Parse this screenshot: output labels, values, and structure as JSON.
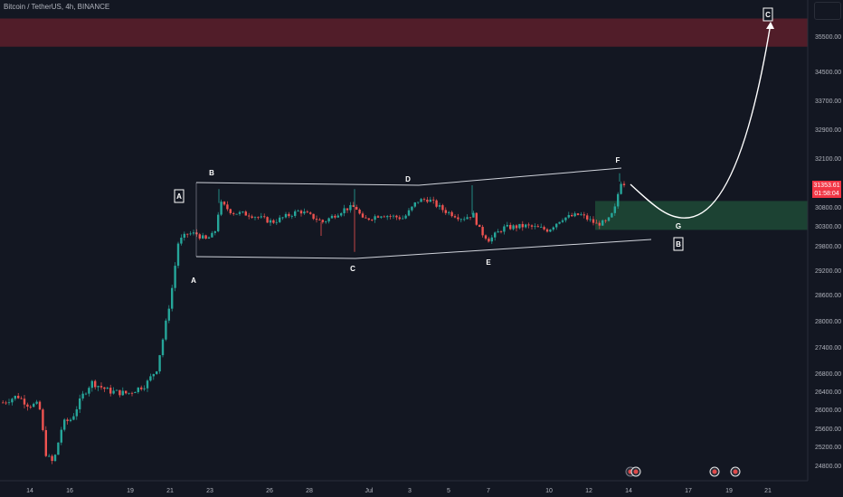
{
  "symbol_line": "Bitcoin / TetherUS, 4h, BINANCE",
  "price_badge": {
    "price": "31353.61",
    "timer": "01:58:04"
  },
  "chart_data": {
    "type": "candlestick",
    "yaxis": {
      "ticks": [
        35500,
        34500,
        33700,
        32900,
        32100,
        31300,
        30800,
        30300,
        29800,
        29200,
        28600,
        28000,
        27400,
        26800,
        26400,
        26000,
        25600,
        25200,
        24800
      ]
    },
    "xaxis": {
      "ticks": [
        "14",
        "16",
        "19",
        "21",
        "23",
        "26",
        "28",
        "Jul",
        "3",
        "5",
        "7",
        "10",
        "12",
        "14",
        "17",
        "19",
        "21"
      ]
    },
    "pattern_labels": [
      "A",
      "B",
      "C",
      "D",
      "E",
      "F",
      "G"
    ],
    "boxed_labels": [
      "A",
      "B",
      "C"
    ],
    "zones": [
      {
        "name": "resistance-zone",
        "color": "#5d1f2a",
        "price_from": 35200,
        "price_to": 36000
      },
      {
        "name": "support-zone",
        "color": "#1f4a36",
        "price_from": 30200,
        "price_to": 30950
      }
    ],
    "colors": {
      "up": "#26a69a",
      "down": "#ef5350",
      "background": "#131722",
      "lines": "#d1d4dc"
    }
  }
}
